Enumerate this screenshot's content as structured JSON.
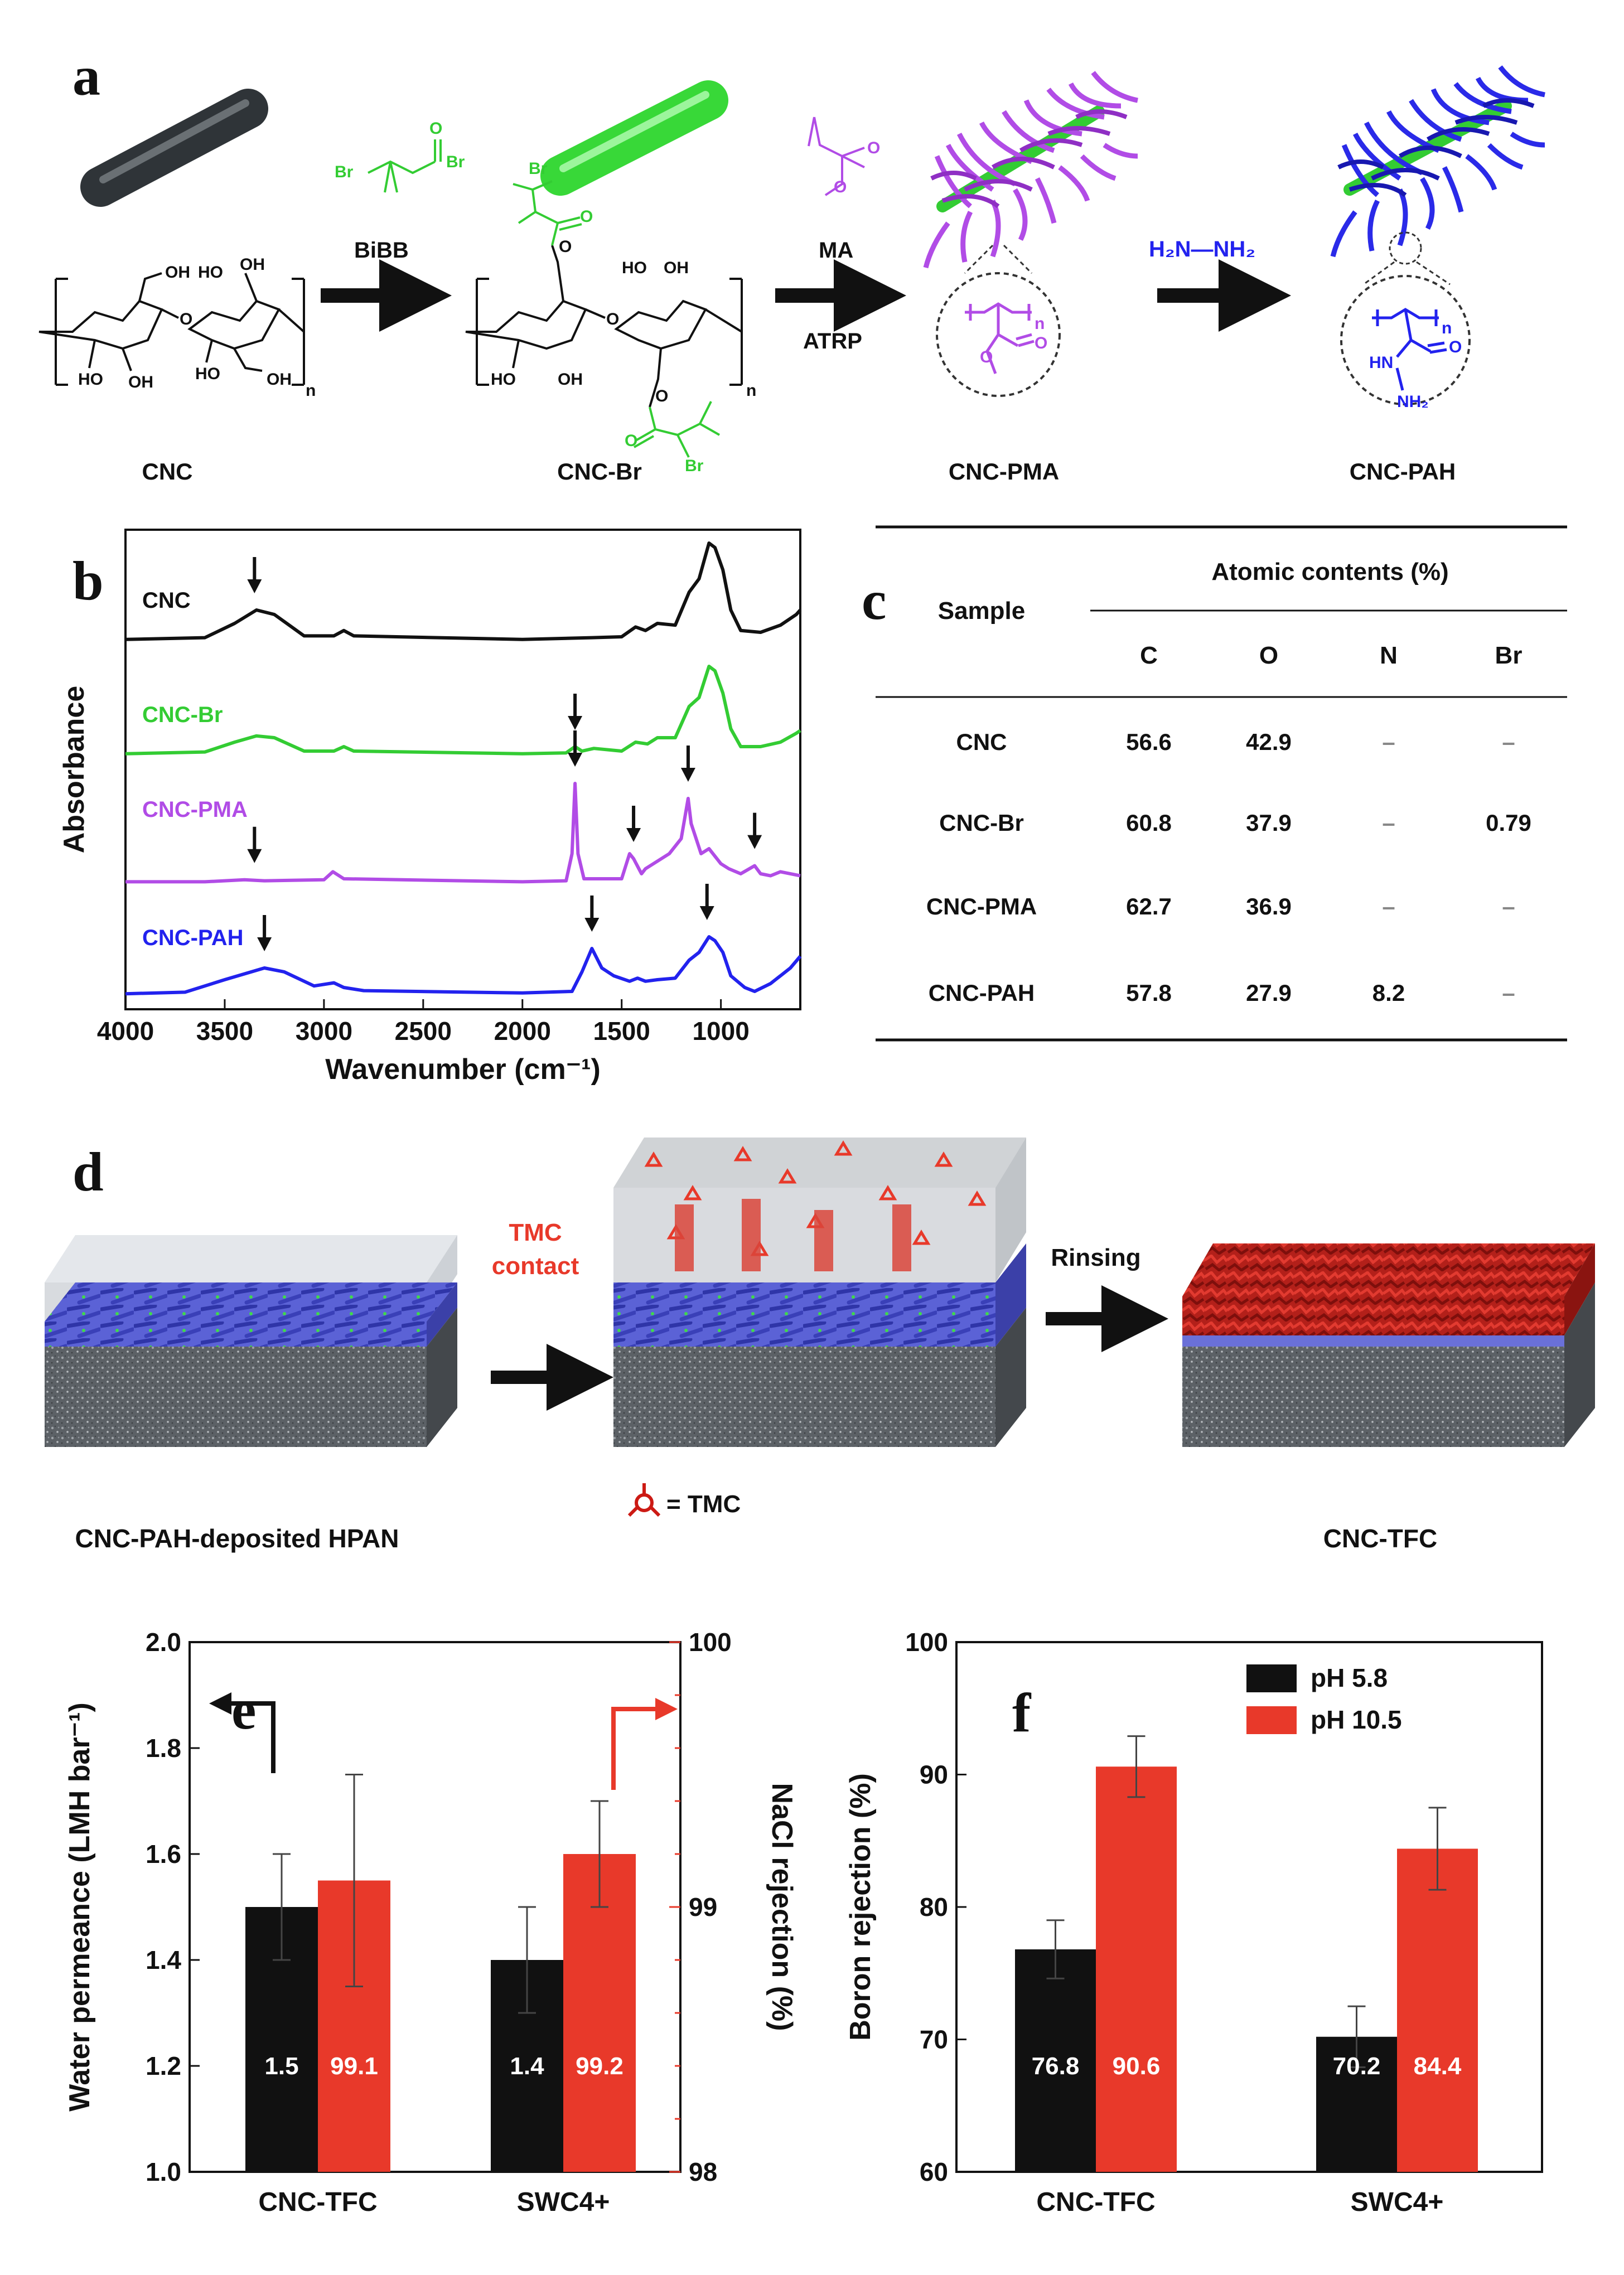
{
  "panel_labels": {
    "a": "a",
    "b": "b",
    "c": "c",
    "d": "d",
    "e": "e",
    "f": "f"
  },
  "colors": {
    "black": "#111111",
    "green": "#33cc33",
    "purple": "#b14ce6",
    "blue": "#2222ee",
    "red": "#e8392a",
    "dark_red": "#cc1a14",
    "gray": "#555a5e"
  },
  "scheme": {
    "reagents": {
      "bibb": "BiBB",
      "ma": "MA",
      "atrp": "ATRP",
      "hydrazine": "H₂N—NH₂"
    },
    "products": [
      "CNC",
      "CNC-Br",
      "CNC-PMA",
      "CNC-PAH"
    ],
    "atoms": {
      "oh": "OH",
      "ho": "HO",
      "o": "O",
      "br": "Br",
      "n": "n",
      "hn": "HN",
      "nh2": "NH₂"
    }
  },
  "membrane_scheme": {
    "step1": [
      "TMC",
      "contact"
    ],
    "step2": "Rinsing",
    "tmc_legend": "= TMC",
    "labels": [
      "CNC-PAH-deposited HPAN",
      "CNC-TFC"
    ]
  },
  "table": {
    "header_sample": "Sample",
    "header_group": "Atomic contents (%)",
    "columns": [
      "C",
      "O",
      "N",
      "Br"
    ],
    "rows": [
      {
        "sample": "CNC",
        "values": [
          "56.6",
          "42.9",
          "–",
          "–"
        ]
      },
      {
        "sample": "CNC-Br",
        "values": [
          "60.8",
          "37.9",
          "–",
          "0.79"
        ]
      },
      {
        "sample": "CNC-PMA",
        "values": [
          "62.7",
          "36.9",
          "–",
          "–"
        ]
      },
      {
        "sample": "CNC-PAH",
        "values": [
          "57.8",
          "27.9",
          "8.2",
          "–"
        ]
      }
    ]
  },
  "chart_data": [
    {
      "type": "line",
      "panel": "b",
      "title": "",
      "xlabel": "Wavenumber (cm⁻¹)",
      "ylabel": "Absorbance",
      "xlim": [
        4000,
        600
      ],
      "x_ticks": [
        "4000",
        "3500",
        "3000",
        "2500",
        "2000",
        "1500",
        "1000"
      ],
      "series": [
        {
          "name": "CNC",
          "color": "#111111",
          "offset": 3.0,
          "points": [
            [
              4000,
              0.02
            ],
            [
              3600,
              0.04
            ],
            [
              3450,
              0.2
            ],
            [
              3340,
              0.35
            ],
            [
              3250,
              0.3
            ],
            [
              3100,
              0.06
            ],
            [
              2950,
              0.06
            ],
            [
              2900,
              0.12
            ],
            [
              2850,
              0.06
            ],
            [
              2000,
              0.02
            ],
            [
              1650,
              0.04
            ],
            [
              1500,
              0.05
            ],
            [
              1430,
              0.16
            ],
            [
              1380,
              0.12
            ],
            [
              1320,
              0.2
            ],
            [
              1230,
              0.18
            ],
            [
              1160,
              0.55
            ],
            [
              1110,
              0.7
            ],
            [
              1060,
              1.1
            ],
            [
              1030,
              1.05
            ],
            [
              990,
              0.8
            ],
            [
              950,
              0.35
            ],
            [
              900,
              0.12
            ],
            [
              800,
              0.1
            ],
            [
              700,
              0.18
            ],
            [
              620,
              0.3
            ],
            [
              600,
              0.35
            ]
          ],
          "arrows": [
            3350
          ]
        },
        {
          "name": "CNC-Br",
          "color": "#33cc33",
          "offset": 2.0,
          "points": [
            [
              4000,
              0.02
            ],
            [
              3600,
              0.04
            ],
            [
              3450,
              0.15
            ],
            [
              3340,
              0.22
            ],
            [
              3250,
              0.2
            ],
            [
              3100,
              0.05
            ],
            [
              2950,
              0.05
            ],
            [
              2900,
              0.1
            ],
            [
              2850,
              0.05
            ],
            [
              2000,
              0.02
            ],
            [
              1780,
              0.03
            ],
            [
              1735,
              0.1
            ],
            [
              1700,
              0.05
            ],
            [
              1640,
              0.08
            ],
            [
              1500,
              0.05
            ],
            [
              1430,
              0.15
            ],
            [
              1370,
              0.13
            ],
            [
              1320,
              0.2
            ],
            [
              1230,
              0.2
            ],
            [
              1160,
              0.55
            ],
            [
              1110,
              0.65
            ],
            [
              1060,
              1.0
            ],
            [
              1030,
              0.95
            ],
            [
              990,
              0.7
            ],
            [
              950,
              0.3
            ],
            [
              900,
              0.1
            ],
            [
              800,
              0.1
            ],
            [
              700,
              0.15
            ],
            [
              620,
              0.25
            ],
            [
              600,
              0.28
            ]
          ],
          "arrows": [
            1735
          ]
        },
        {
          "name": "CNC-PMA",
          "color": "#b14ce6",
          "offset": 1.0,
          "points": [
            [
              4000,
              0.02
            ],
            [
              3600,
              0.02
            ],
            [
              3400,
              0.04
            ],
            [
              3300,
              0.03
            ],
            [
              3000,
              0.04
            ],
            [
              2955,
              0.12
            ],
            [
              2900,
              0.05
            ],
            [
              2000,
              0.02
            ],
            [
              1780,
              0.03
            ],
            [
              1750,
              0.3
            ],
            [
              1735,
              1.0
            ],
            [
              1720,
              0.3
            ],
            [
              1690,
              0.05
            ],
            [
              1500,
              0.05
            ],
            [
              1460,
              0.3
            ],
            [
              1440,
              0.25
            ],
            [
              1400,
              0.1
            ],
            [
              1380,
              0.15
            ],
            [
              1260,
              0.3
            ],
            [
              1200,
              0.45
            ],
            [
              1165,
              0.85
            ],
            [
              1150,
              0.6
            ],
            [
              1100,
              0.3
            ],
            [
              1060,
              0.35
            ],
            [
              1000,
              0.2
            ],
            [
              960,
              0.15
            ],
            [
              900,
              0.1
            ],
            [
              830,
              0.18
            ],
            [
              800,
              0.1
            ],
            [
              750,
              0.08
            ],
            [
              700,
              0.12
            ],
            [
              600,
              0.08
            ]
          ],
          "arrows": [
            3350,
            1735,
            1440,
            1165,
            830
          ]
        },
        {
          "name": "CNC-PAH",
          "color": "#2222ee",
          "offset": 0.0,
          "points": [
            [
              4000,
              0.02
            ],
            [
              3700,
              0.04
            ],
            [
              3500,
              0.2
            ],
            [
              3300,
              0.35
            ],
            [
              3200,
              0.3
            ],
            [
              3050,
              0.12
            ],
            [
              2950,
              0.16
            ],
            [
              2900,
              0.1
            ],
            [
              2800,
              0.06
            ],
            [
              2000,
              0.03
            ],
            [
              1750,
              0.05
            ],
            [
              1700,
              0.3
            ],
            [
              1650,
              0.6
            ],
            [
              1600,
              0.35
            ],
            [
              1540,
              0.25
            ],
            [
              1460,
              0.18
            ],
            [
              1420,
              0.22
            ],
            [
              1380,
              0.18
            ],
            [
              1320,
              0.2
            ],
            [
              1230,
              0.22
            ],
            [
              1160,
              0.45
            ],
            [
              1110,
              0.55
            ],
            [
              1060,
              0.75
            ],
            [
              1030,
              0.7
            ],
            [
              990,
              0.55
            ],
            [
              950,
              0.25
            ],
            [
              880,
              0.1
            ],
            [
              830,
              0.05
            ],
            [
              750,
              0.15
            ],
            [
              650,
              0.35
            ],
            [
              600,
              0.5
            ]
          ],
          "arrows": [
            3300,
            1650,
            1070
          ]
        }
      ]
    },
    {
      "type": "bar",
      "panel": "e",
      "categories": [
        "CNC-TFC",
        "SWC4+"
      ],
      "series": [
        {
          "name": "Water permeance",
          "axis": "left",
          "color": "#111111",
          "values": [
            1.5,
            1.4
          ],
          "errors": [
            0.1,
            0.1
          ],
          "labels": [
            "1.5",
            "1.4"
          ]
        },
        {
          "name": "NaCl rejection",
          "axis": "right",
          "color": "#e8392a",
          "values": [
            99.1,
            99.2
          ],
          "errors": [
            0.4,
            0.2
          ],
          "labels": [
            "99.1",
            "99.2"
          ]
        }
      ],
      "ylabel_left": "Water permeance (LMH bar⁻¹)",
      "ylabel_right": "NaCl rejection (%)",
      "ylim_left": [
        1.0,
        2.0
      ],
      "ylim_right": [
        98,
        100
      ],
      "y_ticks_left": [
        "1.0",
        "1.2",
        "1.4",
        "1.6",
        "1.8",
        "2.0"
      ],
      "y_ticks_right": [
        "98",
        "99",
        "100"
      ]
    },
    {
      "type": "bar",
      "panel": "f",
      "categories": [
        "CNC-TFC",
        "SWC4+"
      ],
      "series": [
        {
          "name": "pH 5.8",
          "color": "#111111",
          "values": [
            76.8,
            70.2
          ],
          "errors": [
            2.2,
            2.3
          ],
          "labels": [
            "76.8",
            "70.2"
          ]
        },
        {
          "name": "pH 10.5",
          "color": "#e8392a",
          "values": [
            90.6,
            84.4
          ],
          "errors": [
            2.3,
            3.1
          ],
          "labels": [
            "90.6",
            "84.4"
          ]
        }
      ],
      "ylabel": "Boron rejection (%)",
      "ylim": [
        60,
        100
      ],
      "y_ticks": [
        "60",
        "70",
        "80",
        "90",
        "100"
      ],
      "legend": [
        "pH 5.8",
        "pH 10.5"
      ]
    }
  ]
}
